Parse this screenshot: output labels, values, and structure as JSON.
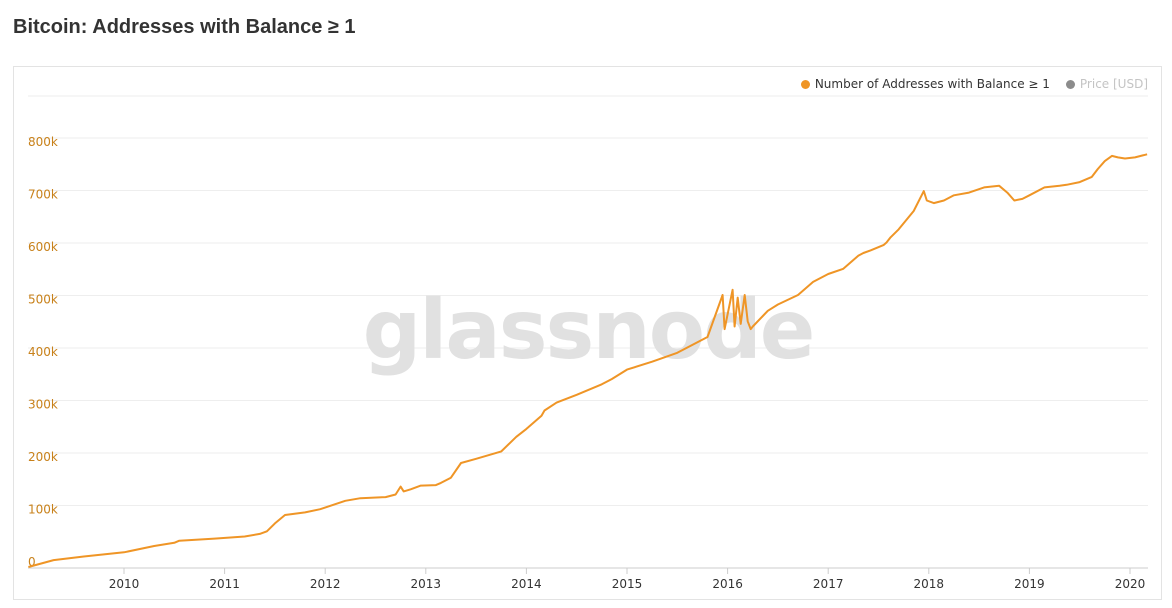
{
  "page_title": "Bitcoin: Addresses with Balance ≥ 1",
  "watermark": "glassnode",
  "legend": [
    {
      "label": "Number of Addresses with Balance ≥ 1",
      "color": "#ef9526"
    },
    {
      "label": "Price [USD]",
      "color": "#8c8c8c"
    }
  ],
  "colors": {
    "series": "#ef9526",
    "y_tick": "#c8811a",
    "grid": "#eeeeee"
  },
  "chart_data": {
    "type": "line",
    "title": "Bitcoin: Addresses with Balance ≥ 1",
    "xlabel": "",
    "ylabel": "",
    "x_range": [
      2009.05,
      2020.17
    ],
    "ylim": [
      0,
      850000
    ],
    "y_ticks": [
      0,
      100000,
      200000,
      300000,
      400000,
      500000,
      600000,
      700000,
      800000
    ],
    "y_tick_labels": [
      "0",
      "100k",
      "200k",
      "300k",
      "400k",
      "500k",
      "600k",
      "700k",
      "800k"
    ],
    "x_ticks": [
      2010,
      2011,
      2012,
      2013,
      2014,
      2015,
      2016,
      2017,
      2018,
      2019,
      2020
    ],
    "x_tick_labels": [
      "2010",
      "2011",
      "2012",
      "2013",
      "2014",
      "2015",
      "2016",
      "2017",
      "2018",
      "2019",
      "2020"
    ],
    "grid": "horizontal",
    "legend_position": "top-right",
    "series": [
      {
        "name": "Number of Addresses with Balance ≥ 1",
        "x": [
          2009.05,
          2009.3,
          2009.6,
          2010.0,
          2010.3,
          2010.5,
          2010.55,
          2010.9,
          2011.2,
          2011.35,
          2011.42,
          2011.5,
          2011.6,
          2011.8,
          2011.95,
          2012.2,
          2012.35,
          2012.6,
          2012.7,
          2012.75,
          2012.78,
          2012.85,
          2012.95,
          2013.1,
          2013.15,
          2013.25,
          2013.35,
          2013.5,
          2013.75,
          2013.9,
          2014.0,
          2014.15,
          2014.18,
          2014.3,
          2014.5,
          2014.75,
          2014.85,
          2015.0,
          2015.25,
          2015.5,
          2015.65,
          2015.8,
          2015.95,
          2015.97,
          2016.05,
          2016.07,
          2016.1,
          2016.13,
          2016.17,
          2016.2,
          2016.23,
          2016.25,
          2016.4,
          2016.5,
          2016.7,
          2016.85,
          2017.0,
          2017.15,
          2017.3,
          2017.35,
          2017.42,
          2017.55,
          2017.58,
          2017.62,
          2017.7,
          2017.85,
          2017.95,
          2017.98,
          2018.05,
          2018.15,
          2018.25,
          2018.4,
          2018.55,
          2018.7,
          2018.78,
          2018.85,
          2018.93,
          2019.0,
          2019.15,
          2019.3,
          2019.37,
          2019.5,
          2019.62,
          2019.68,
          2019.75,
          2019.82,
          2019.88,
          2019.95,
          2020.05,
          2020.17
        ],
        "values": [
          2000,
          15000,
          22000,
          30000,
          42000,
          48000,
          52000,
          56000,
          60000,
          65000,
          70000,
          85000,
          101000,
          106000,
          112000,
          128000,
          133000,
          135000,
          140000,
          155000,
          146000,
          150000,
          157000,
          158000,
          162000,
          172000,
          200000,
          208000,
          222000,
          250000,
          265000,
          290000,
          300000,
          315000,
          330000,
          350000,
          360000,
          378000,
          393000,
          410000,
          425000,
          440000,
          520000,
          455000,
          530000,
          460000,
          515000,
          465000,
          520000,
          470000,
          455000,
          460000,
          490000,
          502000,
          520000,
          545000,
          560000,
          570000,
          595000,
          600000,
          605000,
          615000,
          620000,
          630000,
          645000,
          680000,
          718000,
          700000,
          695000,
          700000,
          710000,
          715000,
          725000,
          728000,
          715000,
          700000,
          703000,
          710000,
          725000,
          728000,
          730000,
          735000,
          745000,
          760000,
          775000,
          785000,
          782000,
          780000,
          782000,
          788000
        ]
      }
    ]
  }
}
